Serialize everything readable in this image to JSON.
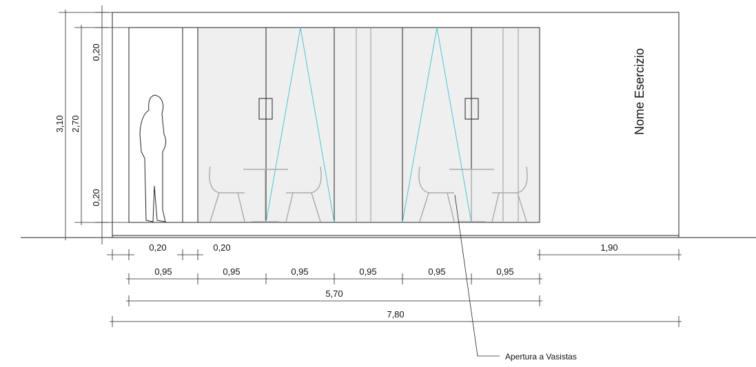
{
  "title": "Nome Esercizio",
  "annotation": "Apertura a Vasistas",
  "vertical_dimensions": [
    "3,10",
    "2,70",
    "0,20",
    "0,20"
  ],
  "horizontal_dimensions": [
    "0,20",
    "0,20",
    "1,90",
    "0,95",
    "0,95",
    "0,95",
    "0,95",
    "0,95",
    "0,95",
    "5,70",
    "7,80"
  ]
}
